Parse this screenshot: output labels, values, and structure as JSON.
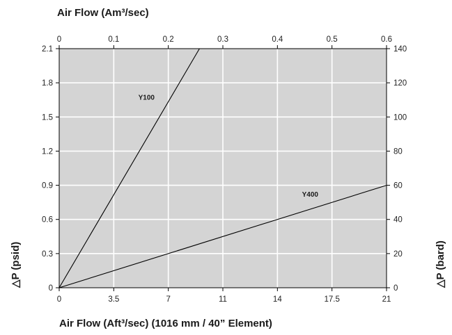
{
  "chart_data": {
    "type": "line",
    "top_axis_title": "Air Flow (Am³/sec)",
    "bottom_axis_title": "Air Flow (Aft³/sec) (1016 mm / 40” Element)",
    "left_axis_title": "△P (psid)",
    "right_axis_title": "△P (bard)",
    "x_bottom": {
      "range": [
        0,
        21
      ],
      "ticks": [
        "0",
        "3.5",
        "7",
        "11",
        "14",
        "17.5",
        "21"
      ],
      "tick_values": [
        0,
        3.5,
        7,
        10.5,
        14,
        17.5,
        21
      ]
    },
    "x_top": {
      "range": [
        0,
        0.6
      ],
      "ticks": [
        "0",
        "0.1",
        "0.2",
        "0.3",
        "0.4",
        "0.5",
        "0.6"
      ],
      "tick_values": [
        0,
        0.1,
        0.2,
        0.3,
        0.4,
        0.5,
        0.6
      ]
    },
    "y_left": {
      "range": [
        0,
        2.1
      ],
      "ticks": [
        "0",
        "0.3",
        "0.6",
        "0.9",
        "1.2",
        "1.5",
        "1.8",
        "2.1"
      ],
      "tick_values": [
        0,
        0.3,
        0.6,
        0.9,
        1.2,
        1.5,
        1.8,
        2.1
      ]
    },
    "y_right": {
      "range": [
        0,
        140
      ],
      "ticks": [
        "0",
        "20",
        "40",
        "60",
        "80",
        "100",
        "120",
        "140"
      ],
      "tick_values": [
        0,
        20,
        40,
        60,
        80,
        100,
        120,
        140
      ]
    },
    "series": [
      {
        "name": "Y100",
        "x": [
          0,
          9
        ],
        "y": [
          0,
          2.1
        ],
        "label_at": [
          5.6,
          1.65
        ]
      },
      {
        "name": "Y400",
        "x": [
          0,
          21
        ],
        "y": [
          0,
          0.9
        ],
        "label_at": [
          16.1,
          0.8
        ]
      }
    ],
    "grid": true,
    "colors": {
      "plot_background": "#d4d4d4",
      "grid": "#ffffff",
      "line": "#000000"
    }
  }
}
